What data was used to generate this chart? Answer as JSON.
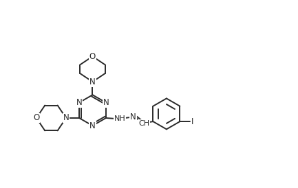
{
  "background_color": "#ffffff",
  "line_color": "#2a2a2a",
  "line_width": 1.4,
  "font_size": 8.5,
  "figsize": [
    4.33,
    2.74
  ],
  "dpi": 100,
  "xlim": [
    0,
    10
  ],
  "ylim": [
    0,
    6.3
  ]
}
